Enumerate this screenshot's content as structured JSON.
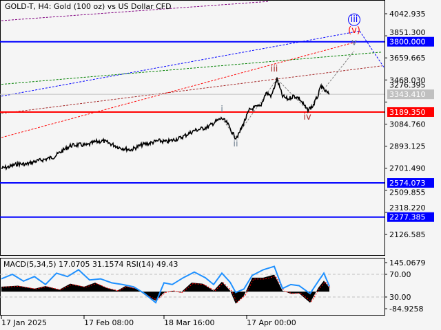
{
  "header": {
    "title": "GOLD-T, H4:  Gold (100 oz) vs US Dollar CFD"
  },
  "indicator": {
    "label": "MACD(5,34,5) 17.0705 31.1574 RSI(14) 49.43"
  },
  "chart_data": {
    "type": "line",
    "ylim": [
      2020,
      4100
    ],
    "y_ticks": [
      "4042.935",
      "3851.300",
      "3659.665",
      "3468.030",
      "3276.395",
      "3084.760",
      "2893.125",
      "2701.490",
      "2509.855",
      "2318.220",
      "2126.585"
    ],
    "x_ticks": [
      {
        "label": "17 Jan 2025",
        "date": "2025-01-16"
      },
      {
        "label": "17 Feb 08:00",
        "date": "2025-02-15"
      },
      {
        "label": "18 Mar 16:00",
        "date": "2025-03-16"
      },
      {
        "label": "17 Apr 00:00",
        "date": "2025-04-15"
      }
    ],
    "price_series": {
      "color": "#000000",
      "points": [
        [
          "2025-01-16",
          2700
        ],
        [
          "2025-01-19",
          2715
        ],
        [
          "2025-01-22",
          2740
        ],
        [
          "2025-01-25",
          2735
        ],
        [
          "2025-01-28",
          2759
        ],
        [
          "2025-02-01",
          2780
        ],
        [
          "2025-02-04",
          2800
        ],
        [
          "2025-02-07",
          2850
        ],
        [
          "2025-02-10",
          2897
        ],
        [
          "2025-02-13",
          2905
        ],
        [
          "2025-02-16",
          2900
        ],
        [
          "2025-02-19",
          2930
        ],
        [
          "2025-02-22",
          2938
        ],
        [
          "2025-02-25",
          2910
        ],
        [
          "2025-02-28",
          2880
        ],
        [
          "2025-03-04",
          2861
        ],
        [
          "2025-03-08",
          2905
        ],
        [
          "2025-03-11",
          2920
        ],
        [
          "2025-03-14",
          2940
        ],
        [
          "2025-03-17",
          2930
        ],
        [
          "2025-03-22",
          2965
        ],
        [
          "2025-03-27",
          3028
        ],
        [
          "2025-04-01",
          3060
        ],
        [
          "2025-04-04",
          3110
        ],
        [
          "2025-04-06",
          3135
        ],
        [
          "2025-04-08",
          3090
        ],
        [
          "2025-04-10",
          3000
        ],
        [
          "2025-04-11",
          2968
        ],
        [
          "2025-04-12",
          2990
        ],
        [
          "2025-04-14",
          3100
        ],
        [
          "2025-04-16",
          3207
        ],
        [
          "2025-04-18",
          3230
        ],
        [
          "2025-04-20",
          3240
        ],
        [
          "2025-04-22",
          3356
        ],
        [
          "2025-04-24",
          3330
        ],
        [
          "2025-04-26",
          3476
        ],
        [
          "2025-04-27",
          3400
        ],
        [
          "2025-04-28",
          3327
        ],
        [
          "2025-04-30",
          3300
        ],
        [
          "2025-05-02",
          3330
        ],
        [
          "2025-05-04",
          3310
        ],
        [
          "2025-05-07",
          3207
        ],
        [
          "2025-05-09",
          3240
        ],
        [
          "2025-05-11",
          3340
        ],
        [
          "2025-05-12",
          3416
        ],
        [
          "2025-05-13",
          3380
        ],
        [
          "2025-05-15",
          3343
        ]
      ]
    },
    "levels": [
      {
        "price": 3800.0,
        "label": "3800.000",
        "color": "#0000ff"
      },
      {
        "price": 3189.35,
        "label": "3189.350",
        "color": "#ff0000"
      },
      {
        "price": 2574.073,
        "label": "2574.073",
        "color": "#0000ff"
      },
      {
        "price": 2277.385,
        "label": "2277.385",
        "color": "#0000ff"
      }
    ],
    "current_price": {
      "price": 3343.41,
      "label": "3343.410",
      "color": "#c0c0c0"
    },
    "trend_lines": [
      {
        "color": "#0000ff",
        "from": [
          "2025-01-16",
          3327
        ],
        "to": [
          "2025-05-26",
          3893
        ]
      },
      {
        "color": "#0000ff",
        "from": [
          "2025-05-26",
          3893
        ],
        "to": [
          "2025-06-04",
          3570
        ]
      },
      {
        "color": "#008000",
        "from": [
          "2025-01-16",
          3430
        ],
        "to": [
          "2025-06-03",
          3710
        ]
      },
      {
        "color": "#ff0000",
        "from": [
          "2025-01-16",
          2968
        ],
        "to": [
          "2025-05-25",
          3800
        ]
      },
      {
        "color": "#a52a2a",
        "from": [
          "2025-01-16",
          3177
        ],
        "to": [
          "2025-06-03",
          3590
        ]
      },
      {
        "color": "#800080",
        "from": [
          "2025-01-16",
          3983
        ],
        "to": [
          "2025-04-23",
          4150
        ]
      }
    ],
    "wave_path": [
      [
        "2025-04-06",
        3135
      ],
      [
        "2025-04-11",
        2968
      ],
      [
        "2025-04-26",
        3476
      ],
      [
        "2025-05-07",
        3207
      ],
      [
        "2025-05-24",
        3720
      ]
    ],
    "wave_labels": [
      {
        "text": "i",
        "at": [
          "2025-04-06",
          3190
        ],
        "color": "#708090"
      },
      {
        "text": "ii",
        "at": [
          "2025-04-11",
          2890
        ],
        "color": "#708090"
      },
      {
        "text": "iii",
        "at": [
          "2025-04-25",
          3540
        ],
        "color": "#a52a2a"
      },
      {
        "text": "iv",
        "at": [
          "2025-05-07",
          3125
        ],
        "color": "#a52a2a"
      },
      {
        "text": "v",
        "at": [
          "2025-05-24",
          3770
        ],
        "color": "#708090"
      },
      {
        "text": "(v)",
        "at": [
          "2025-05-24",
          3875
        ],
        "color": "#ff0000"
      },
      {
        "text": "iii",
        "at": [
          "2025-05-24",
          3935
        ],
        "color": "#0000ff",
        "circled": true
      }
    ],
    "indicator_panel": {
      "ylim": [
        -84.9258,
        145.0679
      ],
      "y_ticks": [
        "145.0679",
        "70.00",
        "30.00",
        "-84.9258"
      ],
      "rsi_levels": [
        70,
        30
      ],
      "macd_histogram": [
        [
          "2025-01-16",
          25
        ],
        [
          "2025-01-22",
          30
        ],
        [
          "2025-01-28",
          15
        ],
        [
          "2025-02-01",
          28
        ],
        [
          "2025-02-06",
          10
        ],
        [
          "2025-02-10",
          40
        ],
        [
          "2025-02-15",
          25
        ],
        [
          "2025-02-19",
          45
        ],
        [
          "2025-02-23",
          20
        ],
        [
          "2025-02-27",
          5
        ],
        [
          "2025-03-02",
          28
        ],
        [
          "2025-03-06",
          15
        ],
        [
          "2025-03-10",
          -25
        ],
        [
          "2025-03-13",
          -45
        ],
        [
          "2025-03-16",
          -5
        ],
        [
          "2025-03-19",
          5
        ],
        [
          "2025-03-22",
          -5
        ],
        [
          "2025-03-26",
          45
        ],
        [
          "2025-03-30",
          40
        ],
        [
          "2025-04-03",
          5
        ],
        [
          "2025-04-06",
          50
        ],
        [
          "2025-04-09",
          5
        ],
        [
          "2025-04-11",
          -60
        ],
        [
          "2025-04-14",
          -20
        ],
        [
          "2025-04-17",
          70
        ],
        [
          "2025-04-21",
          70
        ],
        [
          "2025-04-25",
          85
        ],
        [
          "2025-04-28",
          5
        ],
        [
          "2025-05-01",
          -10
        ],
        [
          "2025-05-04",
          -8
        ],
        [
          "2025-05-08",
          -55
        ],
        [
          "2025-05-11",
          20
        ],
        [
          "2025-05-13",
          55
        ],
        [
          "2025-05-15",
          20
        ]
      ],
      "rsi": [
        [
          "2025-01-16",
          62
        ],
        [
          "2025-01-20",
          70
        ],
        [
          "2025-01-24",
          58
        ],
        [
          "2025-01-28",
          66
        ],
        [
          "2025-02-01",
          52
        ],
        [
          "2025-02-05",
          72
        ],
        [
          "2025-02-09",
          66
        ],
        [
          "2025-02-13",
          78
        ],
        [
          "2025-02-17",
          60
        ],
        [
          "2025-02-21",
          62
        ],
        [
          "2025-02-25",
          55
        ],
        [
          "2025-03-01",
          52
        ],
        [
          "2025-03-05",
          48
        ],
        [
          "2025-03-09",
          36
        ],
        [
          "2025-03-13",
          20
        ],
        [
          "2025-03-16",
          55
        ],
        [
          "2025-03-19",
          52
        ],
        [
          "2025-03-23",
          64
        ],
        [
          "2025-03-27",
          74
        ],
        [
          "2025-03-31",
          64
        ],
        [
          "2025-04-03",
          52
        ],
        [
          "2025-04-06",
          72
        ],
        [
          "2025-04-09",
          56
        ],
        [
          "2025-04-11",
          38
        ],
        [
          "2025-04-14",
          44
        ],
        [
          "2025-04-17",
          68
        ],
        [
          "2025-04-21",
          78
        ],
        [
          "2025-04-25",
          84
        ],
        [
          "2025-04-28",
          45
        ],
        [
          "2025-05-01",
          52
        ],
        [
          "2025-05-04",
          50
        ],
        [
          "2025-05-08",
          36
        ],
        [
          "2025-05-11",
          58
        ],
        [
          "2025-05-13",
          72
        ],
        [
          "2025-05-15",
          49
        ]
      ],
      "signal_color": "#ff0000",
      "rsi_color": "#1e90ff",
      "histogram_color": "#000000"
    }
  }
}
